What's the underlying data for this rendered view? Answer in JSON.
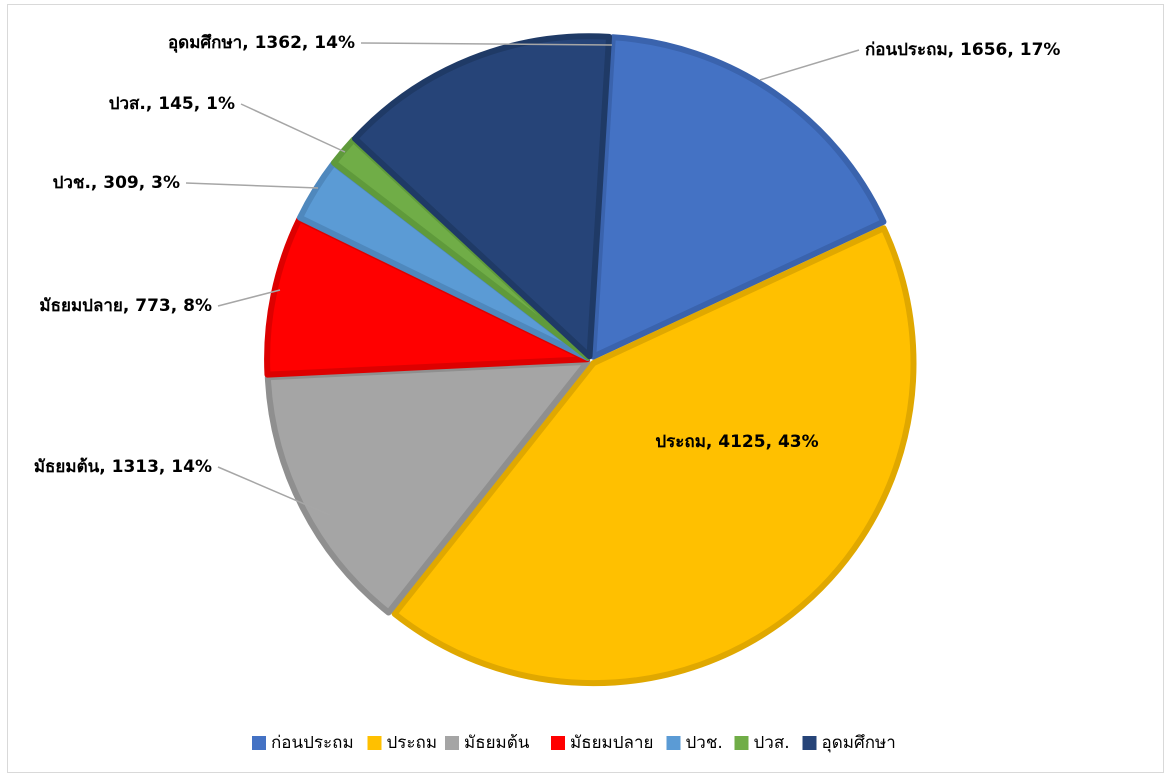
{
  "chart_data": {
    "type": "pie",
    "categories": [
      "ก่อนประถม",
      "ประถม",
      "มัธยมต้น",
      "มัธยมปลาย",
      "ปวช.",
      "ปวส.",
      "อุดมศึกษา"
    ],
    "values": [
      1656,
      4125,
      1313,
      773,
      309,
      145,
      1362
    ],
    "value_labels": [
      "ก่อนประถม, 1656, 17%",
      "ประถม, 4125, 43%",
      "มัธยมต้น, 1313, 14%",
      "มัธยมปลาย, 773, 8%",
      "ปวช., 309, 3%",
      "ปวส., 145, 1%",
      "อุดมศึกษา, 1362, 14%"
    ],
    "colors": [
      "#4472c4",
      "#ffc000",
      "#a5a5a5",
      "#ff0000",
      "#5b9bd5",
      "#70ad47",
      "#264478"
    ],
    "borders": [
      "#3a63ad",
      "#e0a800",
      "#8f8f8f",
      "#dd0000",
      "#4f88bd",
      "#5f9a3b",
      "#1f3a66"
    ],
    "legend": "bottom"
  }
}
